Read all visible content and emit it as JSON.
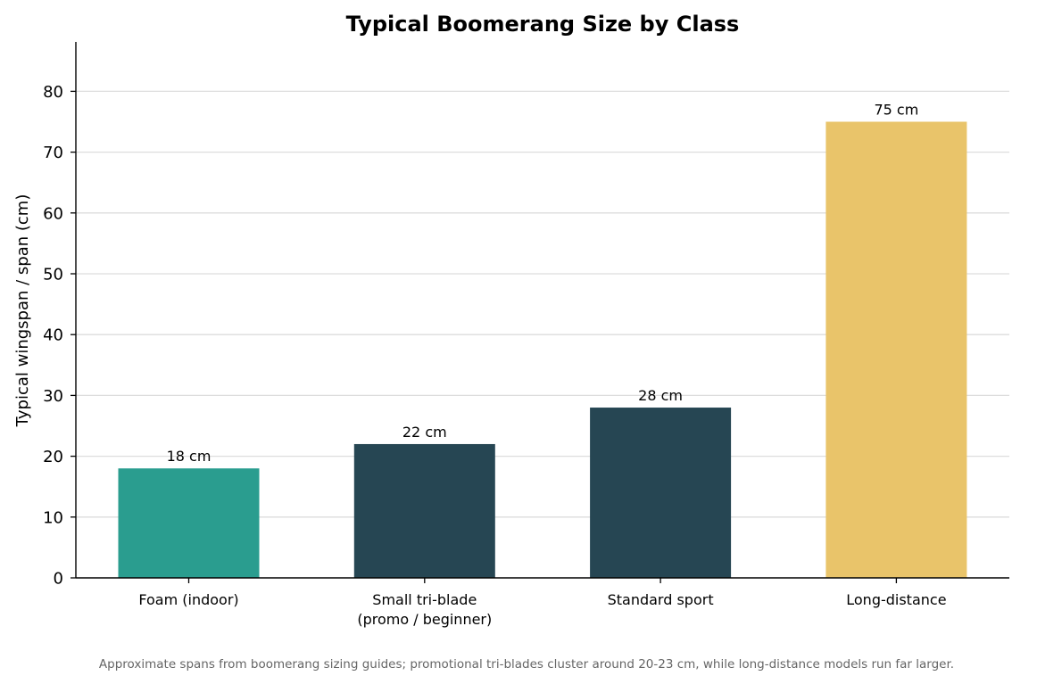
{
  "chart_data": {
    "type": "bar",
    "title": "Typical Boomerang Size by Class",
    "xlabel": "",
    "ylabel": "Typical wingspan / span (cm)",
    "ylim": [
      0,
      88
    ],
    "yticks": [
      0,
      10,
      20,
      30,
      40,
      50,
      60,
      70,
      80
    ],
    "grid": "horizontal",
    "categories": [
      [
        "Foam (indoor)"
      ],
      [
        "Small tri-blade",
        "(promo / beginner)"
      ],
      [
        "Standard sport"
      ],
      [
        "Long-distance"
      ]
    ],
    "values": [
      18,
      22,
      28,
      75
    ],
    "value_labels": [
      "18 cm",
      "22 cm",
      "28 cm",
      "75 cm"
    ],
    "colors": [
      "#2a9d8f",
      "#264653",
      "#264653",
      "#e9c46a"
    ],
    "caption": "Approximate spans from boomerang sizing guides; promotional tri-blades cluster around 20-23 cm, while long-distance models run far larger."
  }
}
